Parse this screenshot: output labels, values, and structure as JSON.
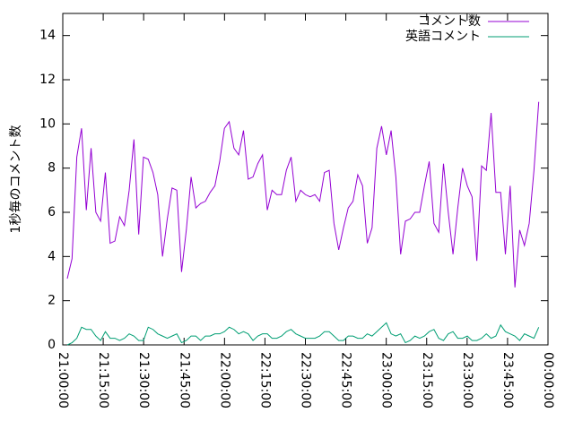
{
  "chart_data": {
    "type": "line",
    "y_label": "1秒毎のコメント数",
    "x": [
      "21:01:40",
      "21:03:26",
      "21:05:12",
      "21:06:58",
      "21:08:44",
      "21:10:30",
      "21:12:16",
      "21:14:02",
      "21:15:48",
      "21:17:34",
      "21:19:20",
      "21:21:06",
      "21:22:52",
      "21:24:38",
      "21:26:24",
      "21:28:10",
      "21:29:56",
      "21:31:42",
      "21:33:28",
      "21:35:14",
      "21:37:00",
      "21:38:46",
      "21:40:32",
      "21:42:18",
      "21:44:04",
      "21:45:50",
      "21:47:36",
      "21:49:22",
      "21:51:08",
      "21:52:54",
      "21:54:40",
      "21:56:26",
      "21:58:12",
      "21:59:58",
      "22:01:44",
      "22:03:30",
      "22:05:16",
      "22:07:02",
      "22:08:48",
      "22:10:34",
      "22:12:20",
      "22:14:06",
      "22:15:52",
      "22:17:38",
      "22:19:24",
      "22:21:10",
      "22:22:56",
      "22:24:42",
      "22:26:28",
      "22:28:14",
      "22:30:00",
      "22:31:46",
      "22:33:32",
      "22:35:18",
      "22:37:04",
      "22:38:50",
      "22:40:36",
      "22:42:22",
      "22:44:08",
      "22:45:54",
      "22:47:40",
      "22:49:26",
      "22:51:12",
      "22:52:58",
      "22:54:44",
      "22:56:30",
      "22:58:16",
      "23:00:02",
      "23:01:48",
      "23:03:34",
      "23:05:20",
      "23:07:06",
      "23:08:52",
      "23:10:38",
      "23:12:24",
      "23:14:10",
      "23:15:56",
      "23:17:42",
      "23:19:28",
      "23:21:14",
      "23:23:00",
      "23:24:46",
      "23:26:32",
      "23:28:18",
      "23:30:04",
      "23:31:50",
      "23:33:36",
      "23:35:22",
      "23:37:08",
      "23:38:54",
      "23:40:40",
      "23:42:26",
      "23:44:12",
      "23:45:58",
      "23:47:44",
      "23:49:30",
      "23:51:16",
      "23:53:02",
      "23:54:48",
      "23:56:34"
    ],
    "series": [
      {
        "name": "コメント数",
        "color": "#9400d3",
        "values": [
          3.0,
          3.9,
          8.5,
          9.8,
          6.1,
          8.9,
          6.0,
          5.6,
          7.8,
          4.6,
          4.7,
          5.8,
          5.4,
          7.0,
          9.3,
          5.0,
          8.5,
          8.4,
          7.8,
          6.8,
          4.0,
          5.7,
          7.1,
          7.0,
          3.3,
          5.2,
          7.6,
          6.2,
          6.4,
          6.5,
          6.9,
          7.2,
          8.3,
          9.8,
          10.1,
          8.9,
          8.6,
          9.7,
          7.5,
          7.6,
          8.2,
          8.6,
          6.1,
          7.0,
          6.8,
          6.8,
          7.9,
          8.5,
          6.5,
          7.0,
          6.8,
          6.7,
          6.8,
          6.5,
          7.8,
          7.9,
          5.5,
          4.3,
          5.3,
          6.2,
          6.5,
          7.7,
          7.2,
          4.6,
          5.3,
          8.9,
          9.9,
          8.6,
          9.7,
          7.6,
          4.1,
          5.6,
          5.7,
          6.0,
          6.0,
          7.2,
          8.3,
          5.5,
          5.1,
          8.2,
          6.0,
          4.1,
          6.2,
          8.0,
          7.2,
          6.7,
          3.8,
          8.1,
          7.9,
          10.5,
          6.9,
          6.9,
          4.1,
          7.2,
          2.6,
          5.2,
          4.5,
          5.5,
          7.9,
          11.0
        ]
      },
      {
        "name": "英語コメント",
        "color": "#009e73",
        "values": [
          0,
          0.1,
          0.3,
          0.8,
          0.7,
          0.7,
          0.4,
          0.2,
          0.6,
          0.3,
          0.3,
          0.2,
          0.3,
          0.5,
          0.4,
          0.2,
          0.2,
          0.8,
          0.7,
          0.5,
          0.4,
          0.3,
          0.4,
          0.5,
          0.1,
          0.2,
          0.4,
          0.4,
          0.2,
          0.4,
          0.4,
          0.5,
          0.5,
          0.6,
          0.8,
          0.7,
          0.5,
          0.6,
          0.5,
          0.2,
          0.4,
          0.5,
          0.5,
          0.3,
          0.3,
          0.4,
          0.6,
          0.7,
          0.5,
          0.4,
          0.3,
          0.3,
          0.3,
          0.4,
          0.6,
          0.6,
          0.4,
          0.2,
          0.2,
          0.4,
          0.4,
          0.3,
          0.3,
          0.5,
          0.4,
          0.6,
          0.8,
          1.0,
          0.5,
          0.4,
          0.5,
          0.1,
          0.2,
          0.4,
          0.3,
          0.4,
          0.6,
          0.7,
          0.3,
          0.2,
          0.5,
          0.6,
          0.3,
          0.3,
          0.4,
          0.2,
          0.2,
          0.3,
          0.5,
          0.3,
          0.4,
          0.9,
          0.6,
          0.5,
          0.4,
          0.2,
          0.5,
          0.4,
          0.3,
          0.8
        ]
      }
    ],
    "xlim": [
      "21:00:00",
      "00:00:00"
    ],
    "xticks": [
      "21:00:00",
      "21:15:00",
      "21:30:00",
      "21:45:00",
      "22:00:00",
      "22:15:00",
      "22:30:00",
      "22:45:00",
      "23:00:00",
      "23:15:00",
      "23:30:00",
      "23:45:00",
      "00:00:00"
    ],
    "ylim": [
      0,
      15
    ],
    "yticks": [
      0,
      2,
      4,
      6,
      8,
      10,
      12,
      14
    ],
    "legend": "top-right"
  }
}
